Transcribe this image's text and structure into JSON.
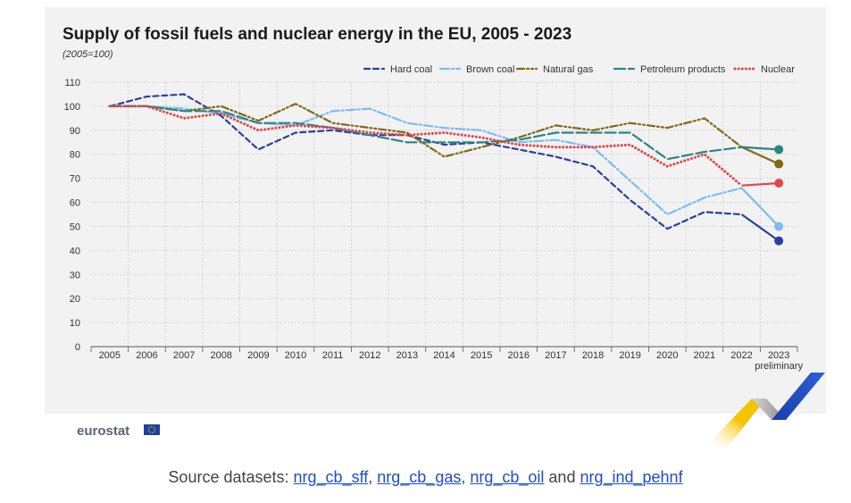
{
  "chart_data": {
    "type": "line",
    "title": "Supply of fossil fuels and nuclear energy in the EU, 2005 - 2023",
    "subtitle": "(2005=100)",
    "categories": [
      "2005",
      "2006",
      "2007",
      "2008",
      "2009",
      "2010",
      "2011",
      "2012",
      "2013",
      "2014",
      "2015",
      "2016",
      "2017",
      "2018",
      "2019",
      "2020",
      "2021",
      "2022",
      "2023"
    ],
    "x_note": "preliminary",
    "ylim": [
      0,
      110
    ],
    "yticks": [
      0,
      10,
      20,
      30,
      40,
      50,
      60,
      70,
      80,
      90,
      100,
      110
    ],
    "grid": true,
    "legend_position": "top-right",
    "series": [
      {
        "name": "Hard coal",
        "color": "#2b3f9e",
        "dash": "dashed",
        "values": [
          100,
          104,
          105,
          96,
          82,
          89,
          90,
          88,
          88,
          84,
          85,
          82,
          79,
          75,
          61,
          49,
          56,
          55,
          44
        ]
      },
      {
        "name": "Brown coal",
        "color": "#7bbcf2",
        "dash": "dashdot",
        "values": [
          100,
          100,
          99,
          97,
          93,
          92,
          98,
          99,
          93,
          91,
          90,
          85,
          86,
          83,
          69,
          55,
          62,
          66,
          50
        ]
      },
      {
        "name": "Natural gas",
        "color": "#836718",
        "dash": "dashdotdot",
        "values": [
          100,
          100,
          98,
          100,
          94,
          101,
          93,
          91,
          89,
          79,
          83,
          87,
          92,
          90,
          93,
          91,
          95,
          83,
          76
        ]
      },
      {
        "name": "Petroleum products",
        "color": "#2a8585",
        "dash": "longdash",
        "values": [
          100,
          100,
          98,
          98,
          93,
          93,
          91,
          88,
          85,
          85,
          85,
          86,
          89,
          89,
          89,
          78,
          81,
          83,
          82
        ]
      },
      {
        "name": "Nuclear",
        "color": "#e0474c",
        "dash": "dotted",
        "values": [
          100,
          100,
          95,
          97,
          90,
          92,
          91,
          89,
          88,
          89,
          87,
          84,
          83,
          83,
          84,
          75,
          80,
          67,
          68
        ]
      }
    ]
  },
  "branding": {
    "logo_text": "eurostat"
  },
  "source": {
    "prefix": "Source datasets: ",
    "links": [
      "nrg_cb_sff",
      "nrg_cb_gas",
      "nrg_cb_oil",
      "nrg_ind_pehnf"
    ],
    "sep1": ", ",
    "sep2": ", ",
    "and": " and "
  }
}
